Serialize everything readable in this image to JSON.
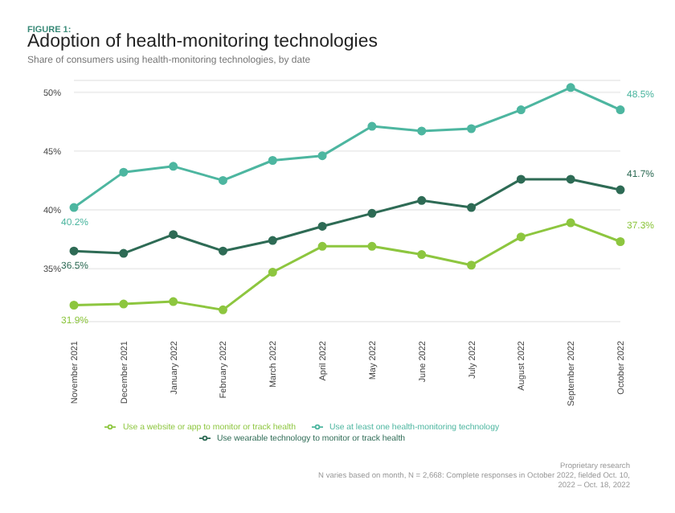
{
  "chart_data": {
    "type": "line",
    "title": "Adoption of health-monitoring technologies",
    "subtitle": "Share of consumers using health-monitoring technologies, by date",
    "annotations": [
      "FIGURE 1:",
      "Proprietary research",
      "N varies based on month, N = 2,668: Complete responses in October 2022, fielded Oct. 10, 2022 – Oct. 18, 2022"
    ],
    "categories": [
      "November 2021",
      "December 2021",
      "January 2022",
      "February 2022",
      "March 2022",
      "April 2022",
      "May 2022",
      "June 2022",
      "July 2022",
      "August 2022",
      "September 2022",
      "October 2022"
    ],
    "series": [
      {
        "name": "Use a website or app to monitor or track health",
        "color": "#8dc63f",
        "values": [
          31.9,
          32.0,
          32.2,
          31.5,
          34.7,
          36.9,
          36.9,
          36.2,
          35.3,
          37.7,
          38.9,
          37.3
        ],
        "value_labels": [
          "31.9%",
          null,
          null,
          null,
          null,
          null,
          null,
          null,
          null,
          null,
          null,
          "37.3%"
        ]
      },
      {
        "name": "Use at least one health-monitoring technology",
        "color": "#4db6a0",
        "values": [
          40.2,
          43.2,
          43.7,
          42.5,
          44.2,
          44.6,
          47.1,
          46.7,
          46.9,
          48.5,
          50.4,
          48.5
        ],
        "value_labels": [
          "40.2%",
          null,
          null,
          null,
          null,
          null,
          null,
          null,
          null,
          null,
          null,
          "48.5%"
        ]
      },
      {
        "name": "Use wearable technology to monitor or track health",
        "color": "#2e6b55",
        "values": [
          36.5,
          36.3,
          37.9,
          36.5,
          37.4,
          38.6,
          39.7,
          40.8,
          40.2,
          42.6,
          42.6,
          41.7
        ],
        "value_labels": [
          "36.5%",
          null,
          null,
          null,
          null,
          null,
          null,
          null,
          null,
          null,
          null,
          "41.7%"
        ]
      }
    ],
    "ylim": [
      30.5,
      51
    ],
    "yticks": [
      {
        "value": 35,
        "label": "35%"
      },
      {
        "value": 40,
        "label": "40%"
      },
      {
        "value": 45,
        "label": "45%"
      },
      {
        "value": 50,
        "label": "50%"
      }
    ],
    "grid": "y",
    "legend": "bottom",
    "marker": "circle",
    "line_style": "solid"
  }
}
